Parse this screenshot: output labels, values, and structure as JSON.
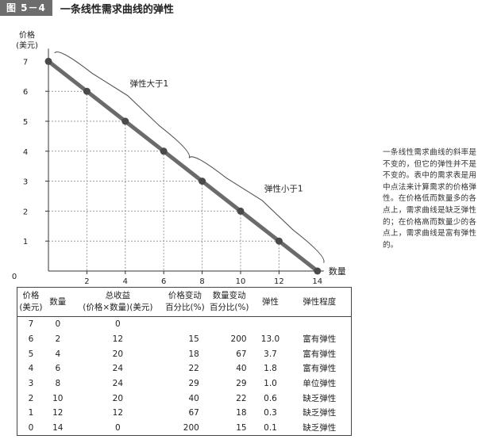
{
  "figure": {
    "number": "图 5－4",
    "title": "一条线性需求曲线的弹性",
    "caption": "一条线性需求曲线的斜率是不变的，但它的弹性并不是不变的。表中的需求表是用中点法来计算需求的价格弹性。在价格低而数量多的各点上，需求曲线是缺乏弹性的；在价格高而数量少的各点上，需求曲线是富有弹性的。"
  },
  "colors": {
    "curve": "#6b6b6b",
    "point": "#4a4a4a",
    "grid": "#999999",
    "axis": "#333333",
    "header_bg": "#6d6d6d"
  },
  "chart_data": {
    "type": "line",
    "ylabel_line1": "价格",
    "ylabel_line2": "(美元)",
    "xlabel": "数量",
    "origin_label": "0",
    "xlim": [
      0,
      14
    ],
    "ylim": [
      0,
      7
    ],
    "x_ticks": [
      2,
      4,
      6,
      8,
      10,
      12,
      14
    ],
    "y_ticks": [
      1,
      2,
      3,
      4,
      5,
      6,
      7
    ],
    "grid": "dotted",
    "series": [
      {
        "x": [
          0,
          2,
          4,
          6,
          8,
          10,
          12,
          14
        ],
        "y": [
          7,
          6,
          5,
          4,
          3,
          2,
          1,
          0
        ]
      }
    ],
    "annotations": [
      {
        "text": "弹性大于1",
        "x_range": [
          0,
          7
        ],
        "side": "above"
      },
      {
        "text": "弹性小于1",
        "x_range": [
          7,
          14
        ],
        "side": "above"
      }
    ]
  },
  "table": {
    "headers": [
      [
        "价格",
        "(美元)"
      ],
      [
        "数量"
      ],
      [
        "总收益",
        "(价格×数量)(美元)"
      ],
      [
        "价格变动",
        "百分比(%)"
      ],
      [
        "数量变动",
        "百分比(%)"
      ],
      [
        "弹性"
      ],
      [
        "弹性程度"
      ]
    ],
    "rows": [
      [
        "7",
        "0",
        "0",
        "",
        "",
        "",
        ""
      ],
      [
        "6",
        "2",
        "12",
        "15",
        "200",
        "13.0",
        "富有弹性"
      ],
      [
        "5",
        "4",
        "20",
        "18",
        "67",
        "3.7",
        "富有弹性"
      ],
      [
        "4",
        "6",
        "24",
        "22",
        "40",
        "1.8",
        "富有弹性"
      ],
      [
        "3",
        "8",
        "24",
        "29",
        "29",
        "1.0",
        "单位弹性"
      ],
      [
        "2",
        "10",
        "20",
        "40",
        "22",
        "0.6",
        "缺乏弹性"
      ],
      [
        "1",
        "12",
        "12",
        "67",
        "18",
        "0.3",
        "缺乏弹性"
      ],
      [
        "0",
        "14",
        "0",
        "200",
        "15",
        "0.1",
        "缺乏弹性"
      ]
    ]
  }
}
